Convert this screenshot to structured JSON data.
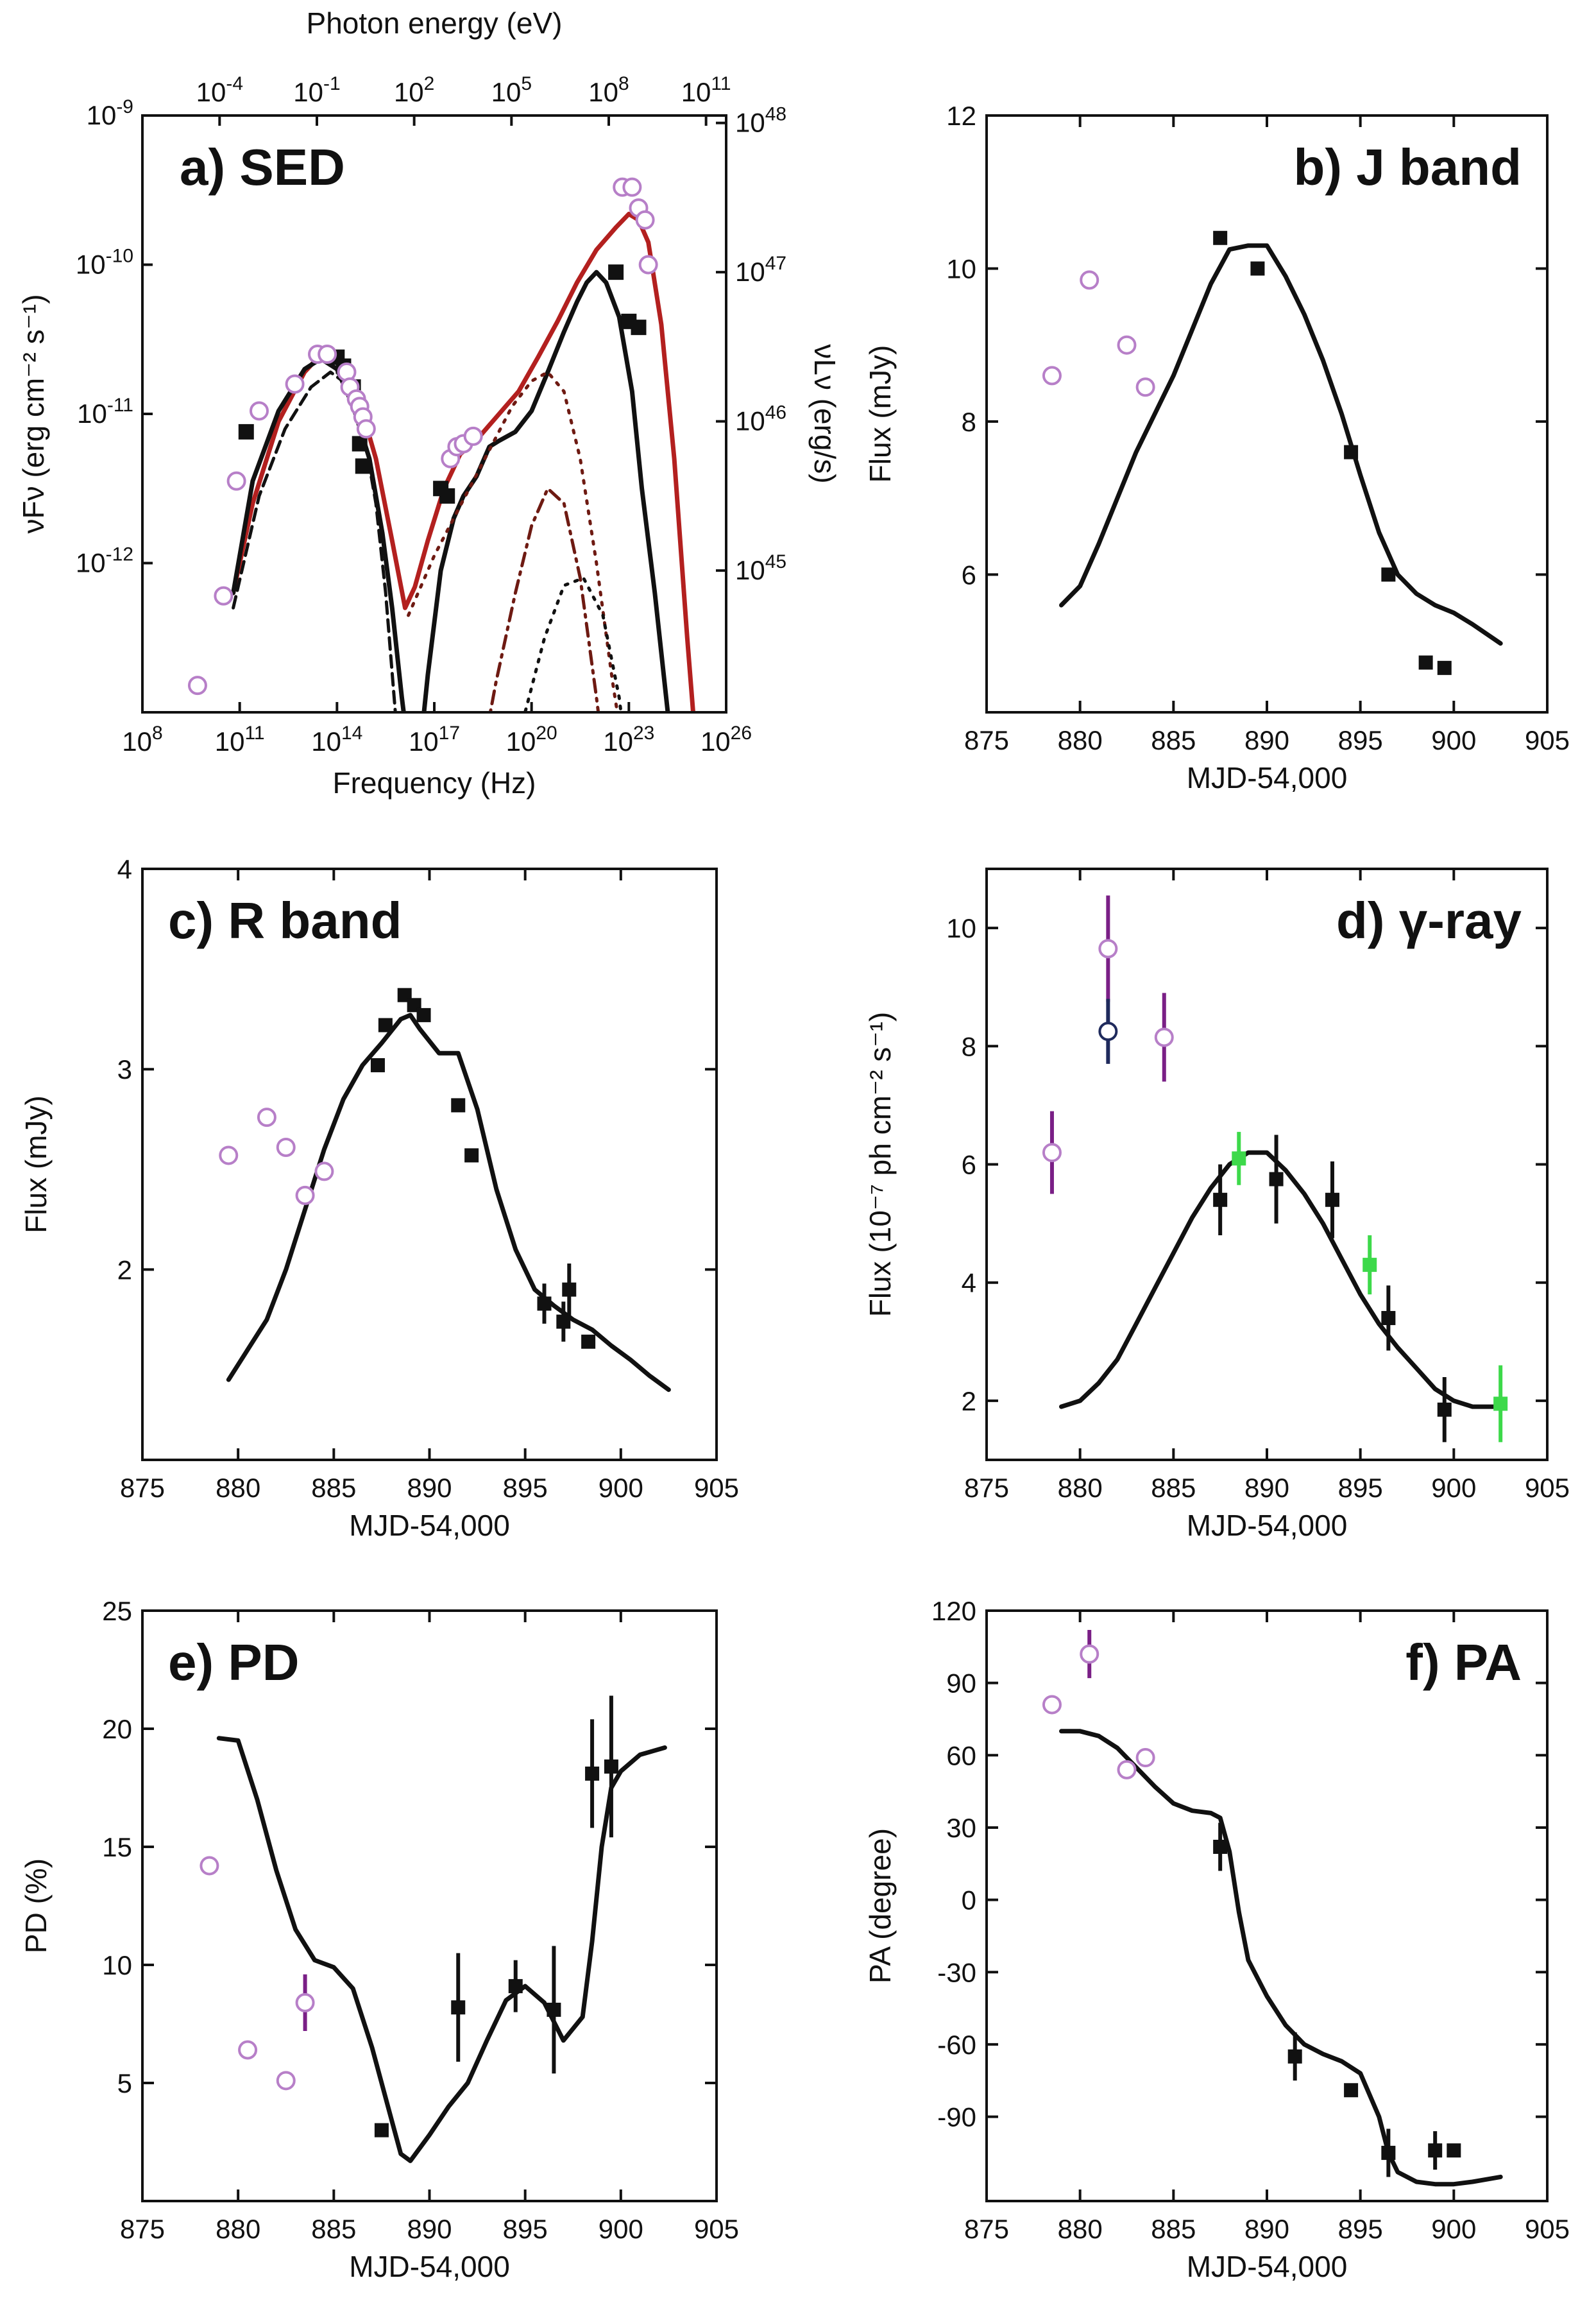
{
  "colors": {
    "black": "#111111",
    "open_marker": "#b77fc8",
    "purple_err": "#7a1f86",
    "green": "#3dd94a",
    "navy": "#1f2a5c",
    "red_model": "#b3201f",
    "dark_red": "#6e1a12"
  },
  "chart_data": [
    {
      "id": "a",
      "type": "line",
      "title": "a) SED",
      "xlabel": "Frequency (Hz)",
      "ylabel": "νFν (erg cm⁻² s⁻¹)",
      "y2label": "νLν (erg/s)",
      "x2label": "Photon energy (eV)",
      "xscale": "log",
      "yscale": "log",
      "xlim_log10": [
        8,
        26
      ],
      "ylim_log10": [
        -13,
        -9
      ],
      "xticks": [
        {
          "v": 8,
          "b": "10",
          "e": "8"
        },
        {
          "v": 11,
          "b": "10",
          "e": "11"
        },
        {
          "v": 14,
          "b": "10",
          "e": "14"
        },
        {
          "v": 17,
          "b": "10",
          "e": "17"
        },
        {
          "v": 20,
          "b": "10",
          "e": "20"
        },
        {
          "v": 23,
          "b": "10",
          "e": "23"
        },
        {
          "v": 26,
          "b": "10",
          "e": "26"
        }
      ],
      "yticks": [
        {
          "v": -12,
          "b": "10",
          "e": "-12"
        },
        {
          "v": -11,
          "b": "10",
          "e": "-11"
        },
        {
          "v": -10,
          "b": "10",
          "e": "-10"
        },
        {
          "v": -9,
          "b": "10",
          "e": "-9"
        }
      ],
      "x2ticks": [
        {
          "v": 10.38,
          "b": "10",
          "e": "-4"
        },
        {
          "v": 13.38,
          "b": "10",
          "e": "-1"
        },
        {
          "v": 16.38,
          "b": "10",
          "e": "2"
        },
        {
          "v": 19.38,
          "b": "10",
          "e": "5"
        },
        {
          "v": 22.38,
          "b": "10",
          "e": "8"
        },
        {
          "v": 25.38,
          "b": "10",
          "e": "11"
        }
      ],
      "y2ticks": [
        {
          "v": -12.05,
          "b": "10",
          "e": "45"
        },
        {
          "v": -11.05,
          "b": "10",
          "e": "46"
        },
        {
          "v": -10.05,
          "b": "10",
          "e": "47"
        },
        {
          "v": -9.05,
          "b": "10",
          "e": "48"
        }
      ],
      "series": [
        {
          "name": "red model",
          "style": "red_line",
          "x": [
            10.8,
            11.4,
            12.2,
            13.0,
            13.6,
            14.1,
            14.6,
            15.2,
            15.7,
            16.1,
            16.4,
            16.8,
            17.3,
            17.8,
            18.4,
            19.0,
            19.6,
            20.2,
            20.8,
            21.4,
            22.0,
            22.6,
            23.0,
            23.3,
            23.6,
            24.0,
            24.4,
            24.8,
            25.2
          ],
          "y": [
            -12.2,
            -11.6,
            -11.05,
            -10.72,
            -10.58,
            -10.6,
            -10.85,
            -11.3,
            -11.85,
            -12.3,
            -12.16,
            -11.85,
            -11.5,
            -11.27,
            -11.15,
            -11.0,
            -10.85,
            -10.62,
            -10.38,
            -10.12,
            -9.9,
            -9.75,
            -9.66,
            -9.7,
            -9.85,
            -10.4,
            -11.3,
            -12.5,
            -13.6
          ]
        },
        {
          "name": "black model",
          "style": "black_line",
          "x": [
            10.8,
            11.4,
            12.2,
            13.0,
            13.5,
            14.0,
            14.5,
            15.0,
            15.4,
            15.7,
            16.0,
            16.4,
            16.8,
            17.2,
            17.6,
            17.9,
            18.3,
            18.7,
            19.0,
            19.5,
            20.0,
            20.5,
            21.0,
            21.4,
            21.7,
            22.0,
            22.3,
            22.7,
            23.1,
            23.4,
            23.8,
            24.2,
            24.6
          ],
          "y": [
            -12.2,
            -11.45,
            -10.98,
            -10.7,
            -10.63,
            -10.7,
            -10.95,
            -11.3,
            -11.8,
            -12.3,
            -12.9,
            -13.6,
            -12.75,
            -12.05,
            -11.7,
            -11.55,
            -11.42,
            -11.22,
            -11.18,
            -11.12,
            -10.98,
            -10.72,
            -10.45,
            -10.25,
            -10.12,
            -10.05,
            -10.12,
            -10.35,
            -10.85,
            -11.5,
            -12.2,
            -13.0,
            -13.6
          ]
        },
        {
          "name": "dashed component",
          "style": "black_dashed",
          "x": [
            10.8,
            11.6,
            12.4,
            13.2,
            13.8,
            14.3,
            14.8,
            15.2,
            15.5,
            15.8
          ],
          "y": [
            -12.3,
            -11.55,
            -11.1,
            -10.82,
            -10.72,
            -10.8,
            -11.1,
            -11.6,
            -12.2,
            -13.0
          ]
        },
        {
          "name": "dotted component",
          "style": "red_dotted",
          "x": [
            16.2,
            16.6,
            17.0,
            17.6,
            18.2,
            18.8,
            19.4,
            20.0,
            20.5,
            21.0,
            21.5,
            22.0,
            22.5,
            23.0
          ],
          "y": [
            -12.35,
            -12.15,
            -11.95,
            -11.7,
            -11.45,
            -11.2,
            -10.95,
            -10.78,
            -10.72,
            -10.85,
            -11.3,
            -12.0,
            -12.8,
            -13.5
          ]
        },
        {
          "name": "dash-dot component",
          "style": "red_dashdot",
          "x": [
            18.3,
            18.9,
            19.5,
            20.0,
            20.5,
            21.0,
            21.5,
            22.0,
            22.4
          ],
          "y": [
            -13.5,
            -12.8,
            -12.2,
            -11.75,
            -11.5,
            -11.6,
            -12.1,
            -12.9,
            -13.6
          ]
        },
        {
          "name": "dotted EC component",
          "style": "black_dotted",
          "x": [
            19.2,
            19.8,
            20.4,
            21.0,
            21.6,
            22.2,
            22.7,
            23.1
          ],
          "y": [
            -13.6,
            -13.0,
            -12.5,
            -12.15,
            -12.1,
            -12.35,
            -12.9,
            -13.6
          ]
        },
        {
          "name": "black squares",
          "x": [
            11.2,
            14.0,
            14.2,
            14.5,
            14.7,
            14.8,
            17.2,
            17.4,
            22.6,
            23.0,
            23.3
          ],
          "y": [
            -11.12,
            -10.62,
            -10.68,
            -10.82,
            -11.2,
            -11.35,
            -11.5,
            -11.55,
            -10.05,
            -10.38,
            -10.42
          ]
        },
        {
          "name": "open circles",
          "x": [
            9.7,
            10.5,
            10.9,
            11.6,
            12.7,
            13.4,
            13.7,
            14.3,
            14.4,
            14.6,
            14.7,
            14.8,
            14.9,
            17.5,
            17.7,
            17.9,
            18.2,
            22.8,
            23.1,
            23.3,
            23.5,
            23.6
          ],
          "y": [
            -12.82,
            -12.22,
            -11.45,
            -10.98,
            -10.8,
            -10.6,
            -10.6,
            -10.72,
            -10.82,
            -10.9,
            -10.95,
            -11.02,
            -11.1,
            -11.3,
            -11.22,
            -11.2,
            -11.15,
            -9.48,
            -9.48,
            -9.62,
            -9.7,
            -10.0
          ]
        }
      ]
    },
    {
      "id": "b",
      "type": "scatter",
      "title": "b) J band",
      "xlabel": "MJD-54,000",
      "ylabel": "Flux (mJy)",
      "xlim": [
        875,
        905
      ],
      "ylim": [
        4.2,
        12
      ],
      "xticks": [
        875,
        880,
        885,
        890,
        895,
        900,
        905
      ],
      "yticks": [
        6,
        8,
        10,
        12
      ],
      "model": {
        "x": [
          879,
          880,
          881,
          882,
          883,
          884,
          885,
          886,
          887,
          888,
          889,
          890,
          891,
          892,
          893,
          894,
          895,
          896,
          897,
          898,
          899,
          900,
          901,
          902.5
        ],
        "y": [
          5.6,
          5.85,
          6.4,
          7.0,
          7.6,
          8.1,
          8.6,
          9.2,
          9.8,
          10.25,
          10.3,
          10.3,
          9.9,
          9.4,
          8.8,
          8.1,
          7.3,
          6.55,
          6.0,
          5.75,
          5.6,
          5.5,
          5.35,
          5.1
        ]
      },
      "filled": [
        {
          "x": 887.5,
          "y": 10.4
        },
        {
          "x": 889.5,
          "y": 10.0
        },
        {
          "x": 894.5,
          "y": 7.6
        },
        {
          "x": 896.5,
          "y": 6.0
        },
        {
          "x": 898.5,
          "y": 4.85
        },
        {
          "x": 899.5,
          "y": 4.78
        }
      ],
      "open": [
        {
          "x": 878.5,
          "y": 8.6
        },
        {
          "x": 880.5,
          "y": 9.85
        },
        {
          "x": 882.5,
          "y": 9.0
        },
        {
          "x": 883.5,
          "y": 8.45
        }
      ]
    },
    {
      "id": "c",
      "type": "scatter",
      "title": "c) R band",
      "xlabel": "MJD-54,000",
      "ylabel": "Flux (mJy)",
      "xlim": [
        875,
        905
      ],
      "ylim": [
        1.05,
        4
      ],
      "xticks": [
        875,
        880,
        885,
        890,
        895,
        900,
        905
      ],
      "yticks": [
        2,
        3,
        4
      ],
      "model": {
        "x": [
          879.5,
          880.5,
          881.5,
          882.5,
          883.5,
          884.5,
          885.5,
          886.5,
          887.5,
          888.5,
          889.0,
          889.5,
          890.5,
          891.5,
          892.5,
          893.5,
          894.5,
          895.5,
          896.5,
          897.5,
          898.5,
          899.5,
          900.5,
          901.5,
          902.5
        ],
        "y": [
          1.45,
          1.6,
          1.75,
          2.0,
          2.3,
          2.6,
          2.85,
          3.02,
          3.13,
          3.25,
          3.27,
          3.2,
          3.08,
          3.08,
          2.8,
          2.4,
          2.1,
          1.9,
          1.82,
          1.75,
          1.7,
          1.62,
          1.55,
          1.47,
          1.4
        ]
      },
      "filled": [
        {
          "x": 887.3,
          "y": 3.02
        },
        {
          "x": 887.7,
          "y": 3.22
        },
        {
          "x": 888.7,
          "y": 3.37
        },
        {
          "x": 889.2,
          "y": 3.32
        },
        {
          "x": 889.7,
          "y": 3.27
        },
        {
          "x": 891.5,
          "y": 2.82
        },
        {
          "x": 892.2,
          "y": 2.57
        },
        {
          "x": 896.0,
          "y": 1.83,
          "err": 0.1
        },
        {
          "x": 897.0,
          "y": 1.74,
          "err": 0.1
        },
        {
          "x": 897.3,
          "y": 1.9,
          "err": 0.13
        },
        {
          "x": 898.3,
          "y": 1.64
        }
      ],
      "open": [
        {
          "x": 879.5,
          "y": 2.57
        },
        {
          "x": 881.5,
          "y": 2.76
        },
        {
          "x": 882.5,
          "y": 2.61
        },
        {
          "x": 883.5,
          "y": 2.37
        },
        {
          "x": 884.5,
          "y": 2.49
        }
      ]
    },
    {
      "id": "d",
      "type": "scatter",
      "title": "d) γ-ray",
      "xlabel": "MJD-54,000",
      "ylabel": "Flux (10⁻⁷ ph cm⁻² s⁻¹)",
      "xlim": [
        875,
        905
      ],
      "ylim": [
        1.0,
        11.0
      ],
      "xticks": [
        875,
        880,
        885,
        890,
        895,
        900,
        905
      ],
      "yticks": [
        2,
        4,
        6,
        8,
        10
      ],
      "model": {
        "x": [
          879,
          880,
          881,
          882,
          883,
          884,
          885,
          886,
          887,
          888,
          889,
          890,
          891,
          892,
          893,
          894,
          895,
          896,
          897,
          898,
          899,
          900,
          901,
          902.5
        ],
        "y": [
          1.9,
          2.0,
          2.3,
          2.7,
          3.3,
          3.9,
          4.5,
          5.1,
          5.6,
          6.0,
          6.2,
          6.2,
          5.9,
          5.5,
          5.0,
          4.4,
          3.8,
          3.3,
          2.9,
          2.55,
          2.2,
          2.0,
          1.9,
          1.9
        ]
      },
      "filled": [
        {
          "x": 887.5,
          "y": 5.4,
          "err": 0.6
        },
        {
          "x": 890.5,
          "y": 5.75,
          "err": 0.75
        },
        {
          "x": 893.5,
          "y": 5.4,
          "err": 0.65
        },
        {
          "x": 896.5,
          "y": 3.4,
          "err": 0.55
        },
        {
          "x": 899.5,
          "y": 1.85,
          "err": 0.55
        }
      ],
      "green": [
        {
          "x": 888.5,
          "y": 6.1,
          "err": 0.45
        },
        {
          "x": 895.5,
          "y": 4.3,
          "err": 0.5
        },
        {
          "x": 902.5,
          "y": 1.95,
          "err": 0.65
        }
      ],
      "open": [
        {
          "x": 878.5,
          "y": 6.2,
          "err": 0.7,
          "edge": "open_marker"
        },
        {
          "x": 881.5,
          "y": 9.65,
          "err": 0.9,
          "edge": "open_marker"
        },
        {
          "x": 881.5,
          "y": 8.25,
          "err": 0.55,
          "edge": "navy"
        },
        {
          "x": 884.5,
          "y": 8.15,
          "err": 0.75,
          "edge": "open_marker"
        }
      ]
    },
    {
      "id": "e",
      "type": "scatter",
      "title": "e) PD",
      "xlabel": "MJD-54,000",
      "ylabel": "PD (%)",
      "xlim": [
        875,
        905
      ],
      "ylim": [
        0,
        25
      ],
      "xticks": [
        875,
        880,
        885,
        890,
        895,
        900,
        905
      ],
      "yticks": [
        5,
        10,
        15,
        20,
        25
      ],
      "model": {
        "x": [
          879,
          880,
          881,
          882,
          883,
          884,
          885,
          886,
          887,
          888,
          888.5,
          889,
          890,
          891,
          892,
          893,
          894,
          895,
          896,
          897,
          898,
          898.5,
          899,
          899.5,
          900,
          901,
          902.3
        ],
        "y": [
          19.6,
          19.5,
          17,
          14,
          11.5,
          10.2,
          9.9,
          9,
          6.5,
          3.5,
          2.0,
          1.7,
          2.8,
          4.0,
          5.0,
          6.8,
          8.5,
          9.1,
          8.4,
          6.8,
          7.8,
          11,
          15,
          17.5,
          18.2,
          18.9,
          19.2
        ]
      },
      "filled": [
        {
          "x": 887.5,
          "y": 3.0
        },
        {
          "x": 891.5,
          "y": 8.2,
          "err": 2.3
        },
        {
          "x": 894.5,
          "y": 9.1,
          "err": 1.1
        },
        {
          "x": 896.5,
          "y": 8.1,
          "err": 2.7
        },
        {
          "x": 898.5,
          "y": 18.1,
          "err": 2.3
        },
        {
          "x": 899.5,
          "y": 18.4,
          "err": 3.0
        }
      ],
      "open": [
        {
          "x": 878.5,
          "y": 14.2
        },
        {
          "x": 880.5,
          "y": 6.4
        },
        {
          "x": 882.5,
          "y": 5.1
        },
        {
          "x": 883.5,
          "y": 8.4,
          "err": 1.2
        }
      ]
    },
    {
      "id": "f",
      "type": "scatter",
      "title": "f) PA",
      "xlabel": "MJD-54,000",
      "ylabel": "PA (degree)",
      "xlim": [
        875,
        905
      ],
      "ylim": [
        -125,
        120
      ],
      "xticks": [
        875,
        880,
        885,
        890,
        895,
        900,
        905
      ],
      "yticks": [
        -90,
        -60,
        -30,
        0,
        30,
        60,
        90,
        120
      ],
      "model": {
        "x": [
          879,
          880,
          881,
          882,
          883,
          884,
          885,
          886,
          887,
          887.5,
          888,
          888.5,
          889,
          890,
          891,
          892,
          893,
          894,
          895,
          896,
          896.5,
          897,
          898,
          899,
          900,
          901,
          902.5
        ],
        "y": [
          70,
          70,
          68,
          63,
          55,
          47,
          40,
          37,
          36,
          34,
          20,
          -5,
          -25,
          -40,
          -52,
          -60,
          -64,
          -67,
          -72,
          -90,
          -105,
          -113,
          -117,
          -118,
          -118,
          -117,
          -115
        ]
      },
      "filled": [
        {
          "x": 887.5,
          "y": 22,
          "err": 10
        },
        {
          "x": 891.5,
          "y": -65,
          "err": 10
        },
        {
          "x": 894.5,
          "y": -79
        },
        {
          "x": 896.5,
          "y": -105,
          "err": 10
        },
        {
          "x": 899.0,
          "y": -104,
          "err": 8
        },
        {
          "x": 900.0,
          "y": -104
        }
      ],
      "open": [
        {
          "x": 878.5,
          "y": 81
        },
        {
          "x": 880.5,
          "y": 102,
          "err": 10
        },
        {
          "x": 882.5,
          "y": 54
        },
        {
          "x": 883.5,
          "y": 59
        }
      ]
    }
  ]
}
